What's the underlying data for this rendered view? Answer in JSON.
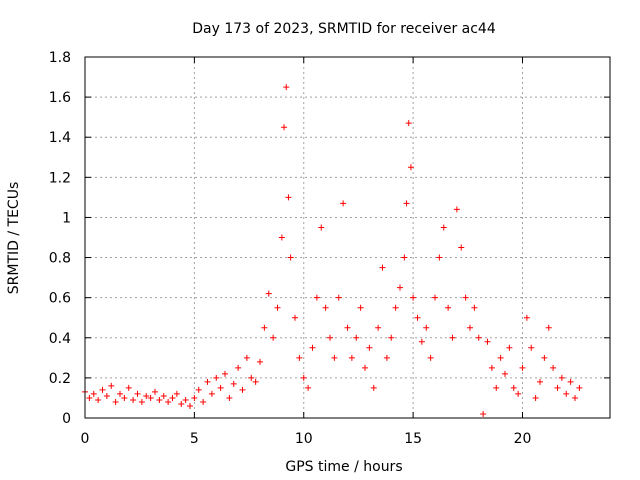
{
  "chart_data": {
    "type": "scatter",
    "title": "Day 173 of 2023, SRMTID for receiver ac44",
    "xlabel": "GPS time / hours",
    "ylabel": "SRMTID / TECUs",
    "xlim": [
      0,
      24
    ],
    "ylim": [
      0,
      1.8
    ],
    "xticks": [
      0,
      5,
      10,
      15,
      20
    ],
    "yticks": [
      0,
      0.2,
      0.4,
      0.6,
      0.8,
      1,
      1.2,
      1.4,
      1.6,
      1.8
    ],
    "xtick_labels": [
      "0",
      "5",
      "10",
      "15",
      "20"
    ],
    "ytick_labels": [
      "0",
      "0.2",
      "0.4",
      "0.6",
      "0.8",
      "1",
      "1.2",
      "1.4",
      "1.6",
      "1.8"
    ],
    "grid": true,
    "marker": "+",
    "marker_color": "#ff0000",
    "series": [
      {
        "name": "SRMTID",
        "points": [
          [
            0.0,
            0.13
          ],
          [
            0.2,
            0.1
          ],
          [
            0.4,
            0.12
          ],
          [
            0.6,
            0.09
          ],
          [
            0.8,
            0.14
          ],
          [
            1.0,
            0.11
          ],
          [
            1.2,
            0.16
          ],
          [
            1.4,
            0.08
          ],
          [
            1.6,
            0.12
          ],
          [
            1.8,
            0.1
          ],
          [
            2.0,
            0.15
          ],
          [
            2.2,
            0.09
          ],
          [
            2.4,
            0.12
          ],
          [
            2.6,
            0.08
          ],
          [
            2.8,
            0.11
          ],
          [
            3.0,
            0.1
          ],
          [
            3.2,
            0.13
          ],
          [
            3.4,
            0.09
          ],
          [
            3.6,
            0.11
          ],
          [
            3.8,
            0.08
          ],
          [
            4.0,
            0.1
          ],
          [
            4.2,
            0.12
          ],
          [
            4.4,
            0.07
          ],
          [
            4.6,
            0.09
          ],
          [
            4.8,
            0.06
          ],
          [
            5.0,
            0.1
          ],
          [
            5.2,
            0.14
          ],
          [
            5.4,
            0.08
          ],
          [
            5.6,
            0.18
          ],
          [
            5.8,
            0.12
          ],
          [
            6.0,
            0.2
          ],
          [
            6.2,
            0.15
          ],
          [
            6.4,
            0.22
          ],
          [
            6.6,
            0.1
          ],
          [
            6.8,
            0.17
          ],
          [
            7.0,
            0.25
          ],
          [
            7.2,
            0.14
          ],
          [
            7.4,
            0.3
          ],
          [
            7.6,
            0.2
          ],
          [
            7.8,
            0.18
          ],
          [
            8.0,
            0.28
          ],
          [
            8.2,
            0.45
          ],
          [
            8.4,
            0.62
          ],
          [
            8.6,
            0.4
          ],
          [
            8.8,
            0.55
          ],
          [
            9.0,
            0.9
          ],
          [
            9.1,
            1.45
          ],
          [
            9.2,
            1.65
          ],
          [
            9.3,
            1.1
          ],
          [
            9.4,
            0.8
          ],
          [
            9.6,
            0.5
          ],
          [
            9.8,
            0.3
          ],
          [
            10.0,
            0.2
          ],
          [
            10.2,
            0.15
          ],
          [
            10.4,
            0.35
          ],
          [
            10.6,
            0.6
          ],
          [
            10.8,
            0.95
          ],
          [
            11.0,
            0.55
          ],
          [
            11.2,
            0.4
          ],
          [
            11.4,
            0.3
          ],
          [
            11.6,
            0.6
          ],
          [
            11.8,
            1.07
          ],
          [
            12.0,
            0.45
          ],
          [
            12.2,
            0.3
          ],
          [
            12.4,
            0.4
          ],
          [
            12.6,
            0.55
          ],
          [
            12.8,
            0.25
          ],
          [
            13.0,
            0.35
          ],
          [
            13.2,
            0.15
          ],
          [
            13.4,
            0.45
          ],
          [
            13.6,
            0.75
          ],
          [
            13.8,
            0.3
          ],
          [
            14.0,
            0.4
          ],
          [
            14.2,
            0.55
          ],
          [
            14.4,
            0.65
          ],
          [
            14.6,
            0.8
          ],
          [
            14.7,
            1.07
          ],
          [
            14.8,
            1.47
          ],
          [
            14.9,
            1.25
          ],
          [
            15.0,
            0.6
          ],
          [
            15.2,
            0.5
          ],
          [
            15.4,
            0.38
          ],
          [
            15.6,
            0.45
          ],
          [
            15.8,
            0.3
          ],
          [
            16.0,
            0.6
          ],
          [
            16.2,
            0.8
          ],
          [
            16.4,
            0.95
          ],
          [
            16.6,
            0.55
          ],
          [
            16.8,
            0.4
          ],
          [
            17.0,
            1.04
          ],
          [
            17.2,
            0.85
          ],
          [
            17.4,
            0.6
          ],
          [
            17.6,
            0.45
          ],
          [
            17.8,
            0.55
          ],
          [
            18.0,
            0.4
          ],
          [
            18.2,
            0.02
          ],
          [
            18.4,
            0.38
          ],
          [
            18.6,
            0.25
          ],
          [
            18.8,
            0.15
          ],
          [
            19.0,
            0.3
          ],
          [
            19.2,
            0.22
          ],
          [
            19.4,
            0.35
          ],
          [
            19.6,
            0.15
          ],
          [
            19.8,
            0.12
          ],
          [
            20.0,
            0.25
          ],
          [
            20.2,
            0.5
          ],
          [
            20.4,
            0.35
          ],
          [
            20.6,
            0.1
          ],
          [
            20.8,
            0.18
          ],
          [
            21.0,
            0.3
          ],
          [
            21.2,
            0.45
          ],
          [
            21.4,
            0.25
          ],
          [
            21.6,
            0.15
          ],
          [
            21.8,
            0.2
          ],
          [
            22.0,
            0.12
          ],
          [
            22.2,
            0.18
          ],
          [
            22.4,
            0.1
          ],
          [
            22.6,
            0.15
          ]
        ]
      }
    ]
  }
}
